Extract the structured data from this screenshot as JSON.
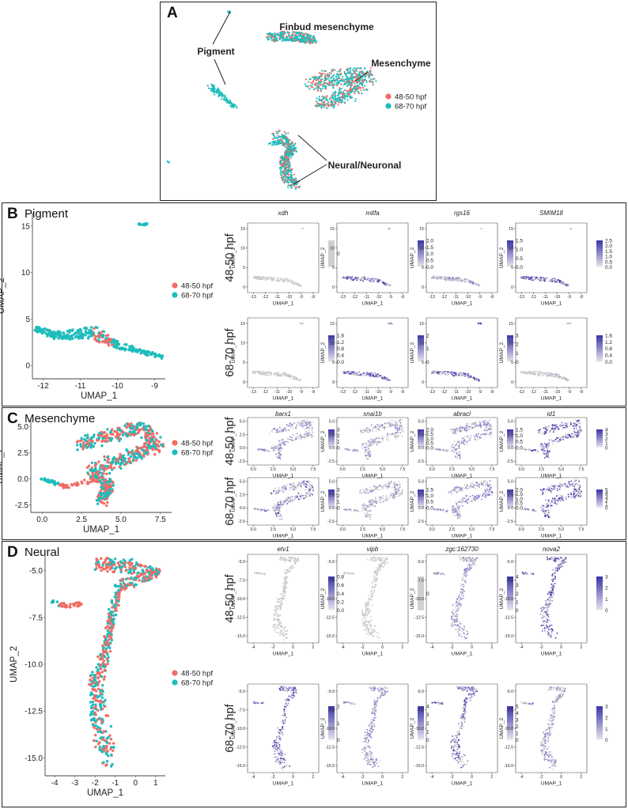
{
  "colors": {
    "early": "#f26b64",
    "late": "#1ebcbd",
    "grey": "#c8c8c8",
    "purple": "#4b3bb0"
  },
  "legend": {
    "early": "48-50 hpf",
    "late": "68-70 hpf"
  },
  "panelA": {
    "label": "A",
    "annotations": [
      "Finbud mesenchyme",
      "Pigment",
      "Mesenchyme",
      "Neural/Neuronal"
    ]
  },
  "panels": [
    {
      "label": "B",
      "title": "Pigment",
      "genes": [
        "xdh",
        "mitfa",
        "rgs16",
        "SMIM18"
      ],
      "rows": [
        "48-50 hpf",
        "68-70 hpf"
      ],
      "main_axes": {
        "xlabel": "UMAP_1",
        "ylabel": "UMAP_2",
        "xticks": [
          "-12",
          "-11",
          "-10",
          "-9"
        ],
        "yticks": [
          "0",
          "5",
          "10",
          "15"
        ]
      },
      "small_axes": {
        "xlabel": "UMAP_1",
        "ylabel": "UMAP_2",
        "xticks": [
          "-13",
          "-12",
          "-11",
          "-10",
          "-9",
          "-8"
        ],
        "yticks": [
          "0",
          "5",
          "10",
          "15"
        ]
      },
      "scales": [
        [
          [
            "0"
          ],
          [
            "0.0",
            "0.5",
            "1.0",
            "1.5",
            "2.0"
          ],
          [
            "0.0",
            "0.5",
            "1.0",
            "1.5"
          ],
          [
            "0.0",
            "0.5",
            "1.0",
            "1.5",
            "2.0",
            "2.5"
          ]
        ],
        [
          [
            "0.0",
            "0.4",
            "0.8",
            "1.2",
            "1.6"
          ],
          [
            "0",
            "1",
            "2"
          ],
          [
            "0",
            "1",
            "2",
            "3"
          ],
          [
            "0.0",
            "0.4",
            "0.8",
            "1.2",
            "1.6"
          ]
        ]
      ]
    },
    {
      "label": "C",
      "title": "Mesenchyme",
      "genes": [
        "barx1",
        "snai1b",
        "abracl",
        "id1"
      ],
      "rows": [
        "48-50 hpf",
        "68-70 hpf"
      ],
      "main_axes": {
        "xlabel": "UMAP_1",
        "ylabel": "UMAP_2",
        "xticks": [
          "0.0",
          "2.5",
          "5.0",
          "7.5"
        ],
        "yticks": [
          "-2.5",
          "0.0",
          "2.5",
          "5.0"
        ]
      },
      "small_axes": {
        "xlabel": "UMAP_1",
        "ylabel": "UMAP_2",
        "xticks": [
          "0.0",
          "2.5",
          "5.0",
          "7.5"
        ],
        "yticks": [
          "-2.5",
          "0.0",
          "2.5",
          "5.0"
        ]
      },
      "scales": [
        [
          [
            "0",
            "1",
            "2",
            "3"
          ],
          [
            "0.0",
            "0.5",
            "1.0",
            "1.5",
            "2.0"
          ],
          [
            "0.0",
            "0.5",
            "1.0",
            "1.5"
          ],
          [
            "0",
            "1",
            "2",
            "3",
            "4"
          ]
        ],
        [
          [
            "0",
            "1",
            "2",
            "3"
          ],
          [
            "0.0",
            "0.5",
            "1.0",
            "1.5"
          ],
          [
            "0.0",
            "0.5",
            "1.0",
            "1.5",
            "2.0"
          ],
          [
            "0",
            "1",
            "2",
            "3",
            "4",
            "5"
          ]
        ]
      ]
    },
    {
      "label": "D",
      "title": "Neural",
      "genes": [
        "etv1",
        "vipb",
        "zgc:162730",
        "nova2"
      ],
      "rows": [
        "48-50 hpf",
        "68-70 hpf"
      ],
      "main_axes": {
        "xlabel": "UMAP_1",
        "ylabel": "UMAP_2",
        "xticks": [
          "-4",
          "-3",
          "-2",
          "-1",
          "0",
          "1"
        ],
        "yticks": [
          "-15.0",
          "-12.5",
          "-10.0",
          "-7.5",
          "-5.0"
        ]
      },
      "small_axes": {
        "xlabel": "UMAP_1",
        "ylabel": "UMAP_2",
        "xticks": [
          "-4",
          "-2",
          "0",
          "2"
        ],
        "yticks": [
          "-15.0",
          "-12.5",
          "-10.0",
          "-7.5",
          "-5.0"
        ]
      },
      "scales": [
        [
          [
            "0.0",
            "0.2",
            "0.4",
            "0.6",
            "0.8"
          ],
          [
            "0"
          ],
          [
            "0",
            "1",
            "2",
            "3",
            "4"
          ],
          [
            "0",
            "1",
            "2",
            "3"
          ]
        ],
        [
          [
            "0",
            "1",
            "2"
          ],
          [
            "0",
            "1",
            "2",
            "3",
            "4"
          ],
          [
            "0",
            "1",
            "2",
            "3",
            "4",
            "5"
          ],
          [
            "0",
            "1",
            "2",
            "3"
          ]
        ]
      ]
    }
  ]
}
